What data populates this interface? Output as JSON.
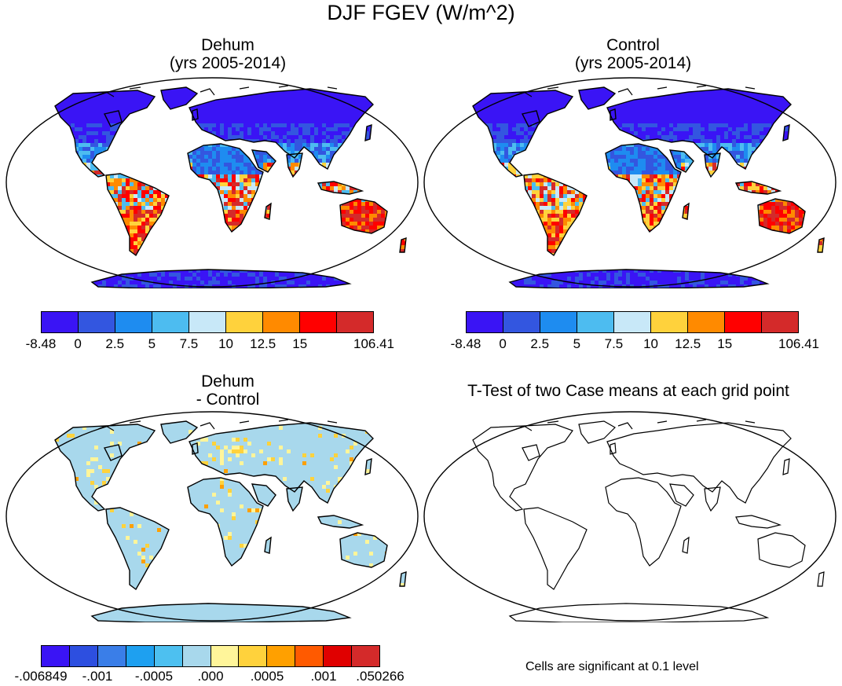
{
  "title": "DJF FGEV (W/m^2)",
  "panels": {
    "top_left": {
      "line1": "Dehum",
      "line2": "(yrs 2005-2014)",
      "type": "absolute"
    },
    "top_right": {
      "line1": "Control",
      "line2": "(yrs 2005-2014)",
      "type": "absolute"
    },
    "bottom_left": {
      "line1": "Dehum",
      "line2": "- Control",
      "type": "difference"
    },
    "bottom_right": {
      "line1": "T-Test of two Case means at each grid point",
      "type": "outline"
    }
  },
  "colorbars": {
    "absolute": {
      "colors": [
        "#3a14f5",
        "#3356e0",
        "#1e8cf0",
        "#4dbcf0",
        "#c8e8f8",
        "#ffd23c",
        "#ff8a00",
        "#ff0000",
        "#d42a2a"
      ],
      "labels": [
        "-8.48",
        "0",
        "2.5",
        "5",
        "7.5",
        "10",
        "12.5",
        "15",
        "106.41"
      ]
    },
    "difference": {
      "colors": [
        "#3a14f5",
        "#2d4fe0",
        "#3a7ee8",
        "#1ea0f0",
        "#4dc0f0",
        "#a8d8ec",
        "#fff59a",
        "#ffd23c",
        "#ffa000",
        "#ff5a00",
        "#e00000",
        "#d42a2a"
      ],
      "labels": [
        "-.006849",
        "-.001",
        "-.0005",
        ".000",
        ".0005",
        ".001",
        ".050266"
      ]
    }
  },
  "note": "Cells are significant at 0.1 level"
}
